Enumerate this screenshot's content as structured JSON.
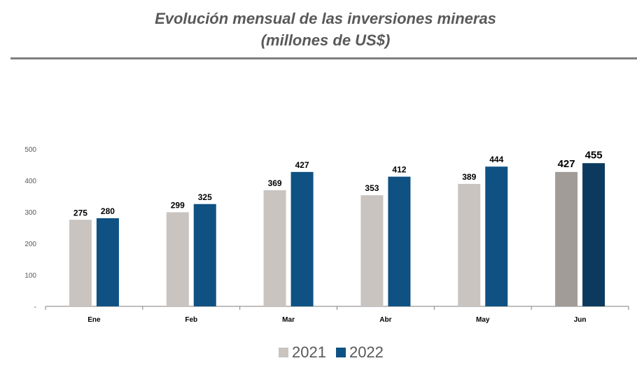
{
  "title": {
    "line1": "Evolución mensual de las inversiones mineras",
    "line2": "(millones de US$)"
  },
  "colors": {
    "s2021": "#c9c4c0",
    "s2022": "#0f5183",
    "s2021_highlight": "#a29c98",
    "s2022_highlight": "#0c3a5e",
    "axis_text": "#595959",
    "rule": "#7f7f7f"
  },
  "chart_data": {
    "type": "bar",
    "title": "Evolución mensual de las inversiones mineras (millones de US$)",
    "categories": [
      "Ene",
      "Feb",
      "Mar",
      "Abr",
      "May",
      "Jun"
    ],
    "series": [
      {
        "name": "2021",
        "values": [
          275,
          299,
          369,
          353,
          389,
          427
        ]
      },
      {
        "name": "2022",
        "values": [
          280,
          325,
          427,
          412,
          444,
          455
        ]
      }
    ],
    "ylim": [
      0,
      500
    ],
    "yticks": [
      0,
      100,
      200,
      300,
      400,
      500
    ],
    "ytick_labels": [
      "-",
      "100",
      "200",
      "300",
      "400",
      "500"
    ],
    "highlight_category": "Jun",
    "grid": false,
    "legend": "bottom-center",
    "xlabel": "",
    "ylabel": ""
  }
}
